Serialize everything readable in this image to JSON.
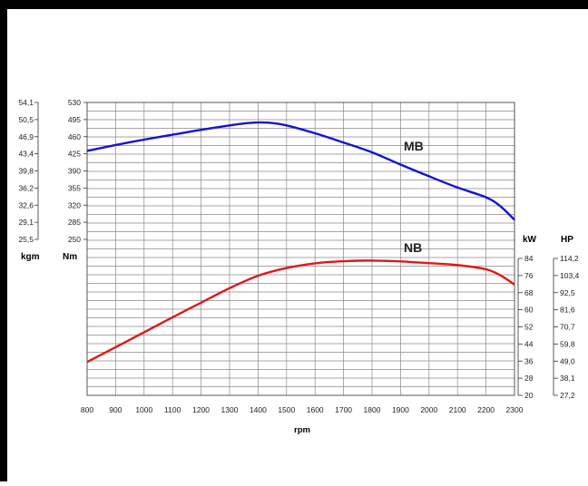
{
  "chart_data": {
    "type": "line",
    "x": [
      800,
      900,
      1000,
      1100,
      1200,
      1300,
      1400,
      1500,
      1600,
      1700,
      1800,
      1900,
      2000,
      2100,
      2200,
      2300
    ],
    "x_ticks": [
      800,
      900,
      1000,
      1100,
      1200,
      1300,
      1400,
      1500,
      1600,
      1700,
      1800,
      1900,
      2000,
      2100,
      2200,
      2300
    ],
    "xlabel": "rpm",
    "xlim": [
      800,
      2300
    ],
    "series": [
      {
        "name": "MB",
        "axis": "torque",
        "color": "#1414d2",
        "x": [
          800,
          900,
          1000,
          1100,
          1200,
          1300,
          1350,
          1400,
          1450,
          1500,
          1600,
          1700,
          1800,
          1900,
          2000,
          2100,
          2200,
          2250,
          2300
        ],
        "values": [
          431,
          443,
          454,
          464,
          474,
          483,
          487,
          489,
          488,
          483,
          467,
          448,
          428,
          403,
          379,
          356,
          336,
          318,
          290
        ]
      },
      {
        "name": "NB",
        "axis": "power",
        "color": "#e01818",
        "x": [
          800,
          900,
          1000,
          1100,
          1200,
          1300,
          1400,
          1500,
          1600,
          1700,
          1800,
          1900,
          2000,
          2100,
          2200,
          2250,
          2300
        ],
        "values": [
          35.6,
          42.5,
          49.5,
          56.5,
          63.3,
          70.1,
          75.9,
          79.5,
          81.7,
          82.7,
          83.0,
          82.6,
          81.8,
          80.9,
          78.9,
          76.1,
          71.8
        ]
      }
    ],
    "torque_axis": {
      "unit": "Nm",
      "ticks": [
        "530",
        "495",
        "460",
        "425",
        "390",
        "355",
        "320",
        "285",
        "250"
      ],
      "range": [
        250,
        530
      ]
    },
    "torque_kgm_axis": {
      "unit": "kgm",
      "ticks": [
        "54,1",
        "50,5",
        "46,9",
        "43,4",
        "39,8",
        "36,2",
        "32,6",
        "29,1",
        "25,5"
      ]
    },
    "power_axis": {
      "unit": "kW",
      "ticks": [
        "84",
        "76",
        "68",
        "60",
        "52",
        "44",
        "36",
        "28",
        "20"
      ],
      "range": [
        20,
        84
      ]
    },
    "power_hp_axis": {
      "unit": "HP",
      "ticks": [
        "114,2",
        "103,4",
        "92,5",
        "81,6",
        "70,7",
        "59,8",
        "49,0",
        "38,1",
        "27,2"
      ]
    },
    "grid": true,
    "legend": "curve labels MB and NB placed next to their curves"
  }
}
